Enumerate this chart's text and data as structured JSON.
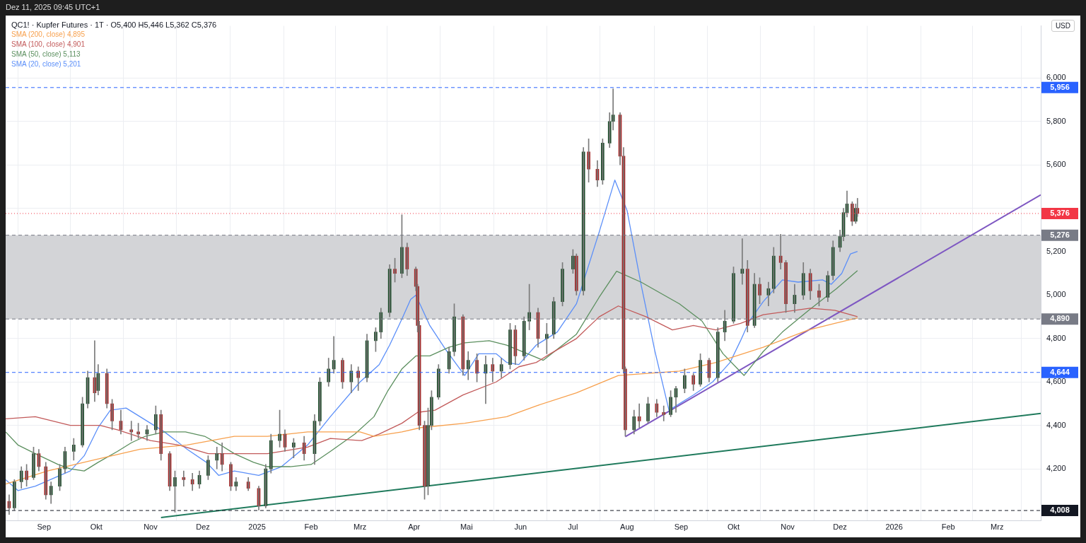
{
  "chart_data": {
    "type": "candlestick",
    "title": "QC1! · Kupfer Futures · 1T · O5,400 H5,446 L5,362 C5,376",
    "ylabel": "USD",
    "annotations": [
      "Dez 11, 2025 09:45 UTC+1"
    ],
    "x": [
      "2024-08-12",
      "2024-08-15",
      "2024-08-19",
      "2024-08-22",
      "2024-08-26",
      "2024-08-29",
      "2024-09-02",
      "2024-09-05",
      "2024-09-10",
      "2024-09-13",
      "2024-09-18",
      "2024-09-23",
      "2024-09-26",
      "2024-09-30",
      "2024-10-02",
      "2024-10-07",
      "2024-10-10",
      "2024-10-15",
      "2024-10-21",
      "2024-10-25",
      "2024-10-30",
      "2024-11-04",
      "2024-11-07",
      "2024-11-12",
      "2024-11-15",
      "2024-11-20",
      "2024-11-25",
      "2024-11-29",
      "2024-12-04",
      "2024-12-09",
      "2024-12-12",
      "2024-12-17",
      "2024-12-20",
      "2024-12-27",
      "2025-01-02",
      "2025-01-06",
      "2025-01-09",
      "2025-01-14",
      "2025-01-17",
      "2025-01-22",
      "2025-01-28",
      "2025-02-03",
      "2025-02-06",
      "2025-02-11",
      "2025-02-14",
      "2025-02-19",
      "2025-02-24",
      "2025-02-28",
      "2025-03-05",
      "2025-03-10",
      "2025-03-13",
      "2025-03-18",
      "2025-03-21",
      "2025-03-25",
      "2025-03-28",
      "2025-04-02",
      "2025-04-03",
      "2025-04-04",
      "2025-04-07",
      "2025-04-09",
      "2025-04-11",
      "2025-04-15",
      "2025-04-21",
      "2025-04-24",
      "2025-04-29",
      "2025-05-02",
      "2025-05-07",
      "2025-05-12",
      "2025-05-16",
      "2025-05-21",
      "2025-05-26",
      "2025-05-29",
      "2025-06-03",
      "2025-06-06",
      "2025-06-11",
      "2025-06-16",
      "2025-06-20",
      "2025-06-25",
      "2025-07-01",
      "2025-07-03",
      "2025-07-07",
      "2025-07-10",
      "2025-07-15",
      "2025-07-18",
      "2025-07-22",
      "2025-07-24",
      "2025-07-28",
      "2025-07-30",
      "2025-07-31",
      "2025-08-05",
      "2025-08-08",
      "2025-08-13",
      "2025-08-18",
      "2025-08-22",
      "2025-08-26",
      "2025-08-29",
      "2025-09-03",
      "2025-09-08",
      "2025-09-12",
      "2025-09-17",
      "2025-09-22",
      "2025-09-26",
      "2025-10-01",
      "2025-10-06",
      "2025-10-09",
      "2025-10-13",
      "2025-10-16",
      "2025-10-21",
      "2025-10-24",
      "2025-10-28",
      "2025-10-31",
      "2025-11-05",
      "2025-11-10",
      "2025-11-14",
      "2025-11-19",
      "2025-11-24",
      "2025-11-27",
      "2025-12-01",
      "2025-12-03",
      "2025-12-05",
      "2025-12-08",
      "2025-12-10",
      "2025-12-11"
    ],
    "ohlc": [
      [
        4050,
        4080,
        3990,
        4020
      ],
      [
        4020,
        4150,
        4010,
        4140
      ],
      [
        4140,
        4210,
        4110,
        4190
      ],
      [
        4190,
        4220,
        4120,
        4150
      ],
      [
        4160,
        4300,
        4150,
        4270
      ],
      [
        4270,
        4290,
        4190,
        4210
      ],
      [
        4210,
        4230,
        4060,
        4080
      ],
      [
        4080,
        4140,
        4040,
        4120
      ],
      [
        4120,
        4220,
        4100,
        4200
      ],
      [
        4200,
        4300,
        4180,
        4280
      ],
      [
        4280,
        4340,
        4240,
        4310
      ],
      [
        4310,
        4530,
        4300,
        4500
      ],
      [
        4500,
        4650,
        4480,
        4620
      ],
      [
        4620,
        4790,
        4510,
        4550
      ],
      [
        4560,
        4680,
        4540,
        4640
      ],
      [
        4640,
        4660,
        4480,
        4500
      ],
      [
        4500,
        4520,
        4380,
        4420
      ],
      [
        4420,
        4470,
        4360,
        4380
      ],
      [
        4380,
        4420,
        4330,
        4370
      ],
      [
        4370,
        4410,
        4340,
        4360
      ],
      [
        4360,
        4400,
        4330,
        4380
      ],
      [
        4380,
        4490,
        4360,
        4450
      ],
      [
        4450,
        4470,
        4240,
        4270
      ],
      [
        4270,
        4280,
        4100,
        4120
      ],
      [
        4120,
        4190,
        4000,
        4160
      ],
      [
        4160,
        4190,
        4120,
        4150
      ],
      [
        4150,
        4180,
        4100,
        4130
      ],
      [
        4130,
        4190,
        4110,
        4170
      ],
      [
        4170,
        4260,
        4150,
        4240
      ],
      [
        4240,
        4300,
        4200,
        4270
      ],
      [
        4270,
        4320,
        4190,
        4220
      ],
      [
        4220,
        4230,
        4100,
        4120
      ],
      [
        4120,
        4160,
        4100,
        4140
      ],
      [
        4140,
        4160,
        4100,
        4110
      ],
      [
        4110,
        4120,
        4010,
        4030
      ],
      [
        4030,
        4220,
        4020,
        4200
      ],
      [
        4200,
        4360,
        4180,
        4330
      ],
      [
        4330,
        4470,
        4300,
        4360
      ],
      [
        4360,
        4380,
        4280,
        4300
      ],
      [
        4300,
        4340,
        4250,
        4320
      ],
      [
        4320,
        4350,
        4240,
        4270
      ],
      [
        4270,
        4450,
        4220,
        4420
      ],
      [
        4420,
        4620,
        4400,
        4600
      ],
      [
        4600,
        4710,
        4580,
        4660
      ],
      [
        4660,
        4810,
        4640,
        4700
      ],
      [
        4700,
        4710,
        4570,
        4600
      ],
      [
        4600,
        4680,
        4550,
        4650
      ],
      [
        4650,
        4670,
        4560,
        4620
      ],
      [
        4620,
        4820,
        4600,
        4790
      ],
      [
        4790,
        4850,
        4740,
        4830
      ],
      [
        4830,
        4940,
        4800,
        4920
      ],
      [
        4920,
        5140,
        4900,
        5120
      ],
      [
        5120,
        5170,
        5060,
        5100
      ],
      [
        5100,
        5370,
        5080,
        5220
      ],
      [
        5220,
        5240,
        5090,
        5120
      ],
      [
        5120,
        5130,
        5020,
        5040
      ],
      [
        5040,
        5050,
        4830,
        4860
      ],
      [
        4860,
        4880,
        4380,
        4400
      ],
      [
        4400,
        4420,
        4060,
        4120
      ],
      [
        4120,
        4480,
        4080,
        4400
      ],
      [
        4400,
        4560,
        4380,
        4530
      ],
      [
        4530,
        4680,
        4520,
        4660
      ],
      [
        4660,
        4760,
        4640,
        4740
      ],
      [
        4740,
        4960,
        4720,
        4900
      ],
      [
        4900,
        4910,
        4630,
        4660
      ],
      [
        4660,
        4740,
        4610,
        4700
      ],
      [
        4700,
        4730,
        4600,
        4640
      ],
      [
        4640,
        4720,
        4500,
        4680
      ],
      [
        4680,
        4710,
        4600,
        4650
      ],
      [
        4650,
        4710,
        4620,
        4680
      ],
      [
        4680,
        4870,
        4660,
        4840
      ],
      [
        4840,
        4860,
        4680,
        4720
      ],
      [
        4720,
        4900,
        4700,
        4880
      ],
      [
        4880,
        5050,
        4840,
        4920
      ],
      [
        4920,
        4940,
        4760,
        4800
      ],
      [
        4800,
        4870,
        4730,
        4820
      ],
      [
        4820,
        4990,
        4800,
        4970
      ],
      [
        4970,
        5150,
        4950,
        5120
      ],
      [
        5120,
        5210,
        5100,
        5180
      ],
      [
        5180,
        5190,
        5000,
        5020
      ],
      [
        5020,
        5680,
        5000,
        5660
      ],
      [
        5660,
        5720,
        5520,
        5580
      ],
      [
        5580,
        5620,
        5500,
        5530
      ],
      [
        5530,
        5720,
        5510,
        5700
      ],
      [
        5700,
        5840,
        5680,
        5800
      ],
      [
        5800,
        5950,
        5760,
        5830
      ],
      [
        5830,
        5840,
        5600,
        5640
      ],
      [
        5640,
        5680,
        4640,
        4660
      ],
      [
        4660,
        4670,
        4350,
        4380
      ],
      [
        4380,
        4470,
        4360,
        4440
      ],
      [
        4440,
        4500,
        4390,
        4420
      ],
      [
        4420,
        4530,
        4410,
        4500
      ],
      [
        4500,
        4520,
        4440,
        4460
      ],
      [
        4460,
        4490,
        4420,
        4450
      ],
      [
        4450,
        4560,
        4440,
        4530
      ],
      [
        4530,
        4580,
        4460,
        4570
      ],
      [
        4570,
        4660,
        4550,
        4630
      ],
      [
        4630,
        4640,
        4560,
        4590
      ],
      [
        4590,
        4730,
        4580,
        4700
      ],
      [
        4700,
        4710,
        4600,
        4620
      ],
      [
        4620,
        4850,
        4600,
        4830
      ],
      [
        4830,
        4930,
        4790,
        4880
      ],
      [
        4880,
        5130,
        4870,
        5100
      ],
      [
        5100,
        5260,
        5050,
        5120
      ],
      [
        5120,
        5160,
        4830,
        4860
      ],
      [
        4860,
        5100,
        4850,
        5050
      ],
      [
        5050,
        5080,
        4960,
        5000
      ],
      [
        5000,
        5060,
        4950,
        5030
      ],
      [
        5030,
        5220,
        5010,
        5180
      ],
      [
        5180,
        5280,
        5120,
        5150
      ],
      [
        5150,
        5160,
        4920,
        4960
      ],
      [
        4960,
        5050,
        4920,
        5000
      ],
      [
        5000,
        5150,
        4980,
        5100
      ],
      [
        5100,
        5120,
        4980,
        5020
      ],
      [
        5020,
        5050,
        4950,
        4990
      ],
      [
        4990,
        5110,
        4970,
        5090
      ],
      [
        5090,
        5250,
        5070,
        5220
      ],
      [
        5220,
        5300,
        5200,
        5270
      ],
      [
        5270,
        5400,
        5250,
        5380
      ],
      [
        5380,
        5480,
        5360,
        5420
      ],
      [
        5420,
        5430,
        5320,
        5340
      ],
      [
        5340,
        5420,
        5330,
        5400
      ],
      [
        5400,
        5446,
        5362,
        5376
      ]
    ],
    "colors": [
      "#a52a2a",
      "#1f4d2c",
      "#1f4d2c",
      "#a52a2a",
      "#1f4d2c",
      "#a52a2a",
      "#a52a2a",
      "#1f4d2c",
      "#1f4d2c",
      "#1f4d2c",
      "#1f4d2c",
      "#1f4d2c",
      "#1f4d2c",
      "#a52a2a",
      "#1f4d2c",
      "#a52a2a",
      "#a52a2a",
      "#a52a2a",
      "#a52a2a",
      "#a52a2a",
      "#1f4d2c",
      "#1f4d2c",
      "#a52a2a",
      "#a52a2a",
      "#1f4d2c",
      "#a52a2a",
      "#a52a2a",
      "#1f4d2c",
      "#1f4d2c",
      "#1f4d2c",
      "#a52a2a",
      "#a52a2a",
      "#1f4d2c",
      "#a52a2a",
      "#a52a2a",
      "#1f4d2c",
      "#1f4d2c",
      "#1f4d2c",
      "#a52a2a",
      "#1f4d2c",
      "#a52a2a",
      "#1f4d2c",
      "#1f4d2c",
      "#1f4d2c",
      "#1f4d2c",
      "#a52a2a",
      "#1f4d2c",
      "#a52a2a",
      "#1f4d2c",
      "#1f4d2c",
      "#1f4d2c",
      "#1f4d2c",
      "#a52a2a",
      "#1f4d2c",
      "#a52a2a",
      "#a52a2a",
      "#a52a2a",
      "#a52a2a",
      "#a52a2a",
      "#1f4d2c",
      "#1f4d2c",
      "#1f4d2c",
      "#1f4d2c",
      "#1f4d2c",
      "#a52a2a",
      "#1f4d2c",
      "#a52a2a",
      "#1f4d2c",
      "#a52a2a",
      "#1f4d2c",
      "#1f4d2c",
      "#a52a2a",
      "#1f4d2c",
      "#1f4d2c",
      "#a52a2a",
      "#1f4d2c",
      "#1f4d2c",
      "#1f4d2c",
      "#1f4d2c",
      "#a52a2a",
      "#1f4d2c",
      "#a52a2a",
      "#a52a2a",
      "#1f4d2c",
      "#1f4d2c",
      "#1f4d2c",
      "#a52a2a",
      "#a52a2a",
      "#a52a2a",
      "#1f4d2c",
      "#a52a2a",
      "#1f4d2c",
      "#a52a2a",
      "#a52a2a",
      "#1f4d2c",
      "#1f4d2c",
      "#1f4d2c",
      "#a52a2a",
      "#1f4d2c",
      "#a52a2a",
      "#1f4d2c",
      "#1f4d2c",
      "#1f4d2c",
      "#1f4d2c",
      "#a52a2a",
      "#1f4d2c",
      "#a52a2a",
      "#1f4d2c",
      "#1f4d2c",
      "#a52a2a",
      "#a52a2a",
      "#1f4d2c",
      "#1f4d2c",
      "#a52a2a",
      "#a52a2a",
      "#1f4d2c",
      "#1f4d2c",
      "#1f4d2c",
      "#1f4d2c",
      "#1f4d2c",
      "#a52a2a",
      "#1f4d2c",
      "#a52a2a"
    ],
    "series": [
      {
        "type": "line",
        "name": "SMA (200, close)  4,895",
        "color": "#f7a04d",
        "x": [
          "2024-08-10",
          "2024-09-03",
          "2024-09-29",
          "2024-10-26",
          "2024-11-22",
          "2024-12-19",
          "2025-01-07",
          "2025-01-30",
          "2025-03-01",
          "2025-03-09",
          "2025-03-25",
          "2025-04-05",
          "2025-04-30",
          "2025-05-24",
          "2025-06-10",
          "2025-07-03",
          "2025-07-27",
          "2025-08-31",
          "2025-09-21",
          "2025-10-18",
          "2025-11-13",
          "2025-11-28",
          "2025-12-11"
        ],
        "values": [
          4130,
          4190,
          4240,
          4290,
          4310,
          4350,
          4350,
          4370,
          4370,
          4350,
          4370,
          4390,
          4410,
          4440,
          4490,
          4550,
          4630,
          4650,
          4690,
          4760,
          4840,
          4870,
          4895
        ]
      },
      {
        "type": "line",
        "name": "SMA (100, close)  4,901",
        "color": "#c25a5a",
        "x": [
          "2024-08-10",
          "2024-08-27",
          "2024-09-16",
          "2024-10-03",
          "2024-10-13",
          "2024-11-01",
          "2024-11-17",
          "2024-12-04",
          "2025-01-07",
          "2025-01-30",
          "2025-02-12",
          "2025-03-02",
          "2025-03-12",
          "2025-03-25",
          "2025-04-03",
          "2025-04-13",
          "2025-04-29",
          "2025-05-18",
          "2025-05-31",
          "2025-06-10",
          "2025-06-18",
          "2025-07-03",
          "2025-07-16",
          "2025-07-27",
          "2025-08-12",
          "2025-08-27",
          "2025-09-08",
          "2025-09-21",
          "2025-10-05",
          "2025-10-18",
          "2025-11-14",
          "2025-11-28",
          "2025-12-11"
        ],
        "values": [
          4430,
          4440,
          4400,
          4400,
          4380,
          4330,
          4310,
          4270,
          4270,
          4300,
          4340,
          4330,
          4360,
          4410,
          4460,
          4470,
          4540,
          4600,
          4670,
          4690,
          4730,
          4800,
          4900,
          4950,
          4900,
          4840,
          4860,
          4840,
          4870,
          4910,
          4940,
          4930,
          4901
        ]
      },
      {
        "type": "line",
        "name": "SMA (50, close)  5,113",
        "color": "#5b8f5e",
        "x": [
          "2024-08-10",
          "2024-08-17",
          "2024-08-27",
          "2024-09-09",
          "2024-09-16",
          "2024-09-24",
          "2024-10-02",
          "2024-10-13",
          "2024-10-21",
          "2024-10-29",
          "2024-11-09",
          "2024-11-21",
          "2024-12-02",
          "2024-12-11",
          "2024-12-19",
          "2024-12-30",
          "2025-01-07",
          "2025-01-20",
          "2025-02-01",
          "2025-02-12",
          "2025-02-26",
          "2025-03-09",
          "2025-03-17",
          "2025-03-25",
          "2025-04-02",
          "2025-04-10",
          "2025-04-21",
          "2025-04-30",
          "2025-05-14",
          "2025-05-24",
          "2025-06-05",
          "2025-06-14",
          "2025-07-03",
          "2025-07-16",
          "2025-07-26",
          "2025-08-09",
          "2025-08-31",
          "2025-09-13",
          "2025-09-25",
          "2025-10-07",
          "2025-10-18",
          "2025-10-29",
          "2025-11-13",
          "2025-11-21",
          "2025-11-29",
          "2025-12-11"
        ],
        "values": [
          4370,
          4310,
          4270,
          4220,
          4200,
          4190,
          4230,
          4280,
          4320,
          4350,
          4370,
          4370,
          4350,
          4310,
          4270,
          4230,
          4210,
          4210,
          4220,
          4280,
          4360,
          4440,
          4560,
          4660,
          4720,
          4720,
          4760,
          4780,
          4790,
          4770,
          4730,
          4700,
          4820,
          4990,
          5110,
          5060,
          4960,
          4880,
          4730,
          4630,
          4740,
          4830,
          4930,
          4980,
          5030,
          5113
        ]
      },
      {
        "type": "line",
        "name": "SMA (20, close)  5,201",
        "color": "#5b8ff9",
        "x": [
          "2024-08-10",
          "2024-08-17",
          "2024-08-27",
          "2024-09-16",
          "2024-09-24",
          "2024-10-02",
          "2024-10-09",
          "2024-10-18",
          "2024-10-26",
          "2024-11-09",
          "2024-11-22",
          "2024-12-03",
          "2024-12-10",
          "2024-12-19",
          "2025-01-02",
          "2025-01-15",
          "2025-01-30",
          "2025-02-12",
          "2025-03-01",
          "2025-03-12",
          "2025-03-18",
          "2025-03-25",
          "2025-03-30",
          "2025-04-02",
          "2025-04-10",
          "2025-04-19",
          "2025-04-30",
          "2025-05-08",
          "2025-05-18",
          "2025-05-24",
          "2025-05-31",
          "2025-06-10",
          "2025-06-22",
          "2025-07-03",
          "2025-07-16",
          "2025-07-25",
          "2025-08-01",
          "2025-08-09",
          "2025-08-17",
          "2025-08-25",
          "2025-09-08",
          "2025-09-19",
          "2025-09-29",
          "2025-10-05",
          "2025-10-10",
          "2025-10-18",
          "2025-10-29",
          "2025-11-07",
          "2025-11-21",
          "2025-11-26",
          "2025-12-02",
          "2025-12-07",
          "2025-12-11"
        ],
        "values": [
          4150,
          4100,
          4120,
          4190,
          4260,
          4390,
          4470,
          4480,
          4440,
          4370,
          4290,
          4230,
          4170,
          4190,
          4170,
          4210,
          4310,
          4440,
          4600,
          4680,
          4770,
          4890,
          4980,
          5000,
          4860,
          4750,
          4630,
          4730,
          4730,
          4690,
          4680,
          4770,
          4830,
          4960,
          5290,
          5530,
          5390,
          5050,
          4740,
          4470,
          4540,
          4600,
          4690,
          4790,
          4880,
          4970,
          5070,
          5060,
          5070,
          5050,
          5100,
          5190,
          5201
        ]
      },
      {
        "type": "line",
        "color": "#7e57c2",
        "x": [
          "2025-07-31",
          "2026-03-26"
        ],
        "values": [
          4348,
          5462
        ]
      },
      {
        "type": "line",
        "color": "#1f7a5c",
        "x": [
          "2024-11-07",
          "2026-03-26"
        ],
        "values": [
          3976,
          4455
        ]
      }
    ],
    "xlim": [
      "2024-08-10",
      "2026-03-26"
    ],
    "xticks": [
      {
        "value": "2024-09-01",
        "label": "Sep"
      },
      {
        "value": "2024-10-01",
        "label": "Okt"
      },
      {
        "value": "2024-11-01",
        "label": "Nov"
      },
      {
        "value": "2024-12-01",
        "label": "Dez"
      },
      {
        "value": "2025-01-01",
        "label": "2025"
      },
      {
        "value": "2025-02-01",
        "label": "Feb"
      },
      {
        "value": "2025-03-01",
        "label": "Mrz"
      },
      {
        "value": "2025-04-01",
        "label": "Apr"
      },
      {
        "value": "2025-05-01",
        "label": "Mai"
      },
      {
        "value": "2025-06-01",
        "label": "Jun"
      },
      {
        "value": "2025-07-01",
        "label": "Jul"
      },
      {
        "value": "2025-08-01",
        "label": "Aug"
      },
      {
        "value": "2025-09-01",
        "label": "Sep"
      },
      {
        "value": "2025-10-01",
        "label": "Okt"
      },
      {
        "value": "2025-11-01",
        "label": "Nov"
      },
      {
        "value": "2025-12-01",
        "label": "Dez"
      },
      {
        "value": "2026-01-01",
        "label": "2026"
      },
      {
        "value": "2026-02-01",
        "label": "Feb"
      },
      {
        "value": "2026-03-01",
        "label": "Mrz"
      }
    ],
    "ylim": [
      3960,
      6240
    ],
    "yticks": [
      {
        "value": 4200,
        "label": "4,200"
      },
      {
        "value": 4400,
        "label": "4,400"
      },
      {
        "value": 4600,
        "label": "4,600"
      },
      {
        "value": 4800,
        "label": "4,800"
      },
      {
        "value": 5000,
        "label": "5,000"
      },
      {
        "value": 5200,
        "label": "5,200"
      },
      {
        "value": 5400,
        "label": null
      },
      {
        "value": 5600,
        "label": "5,600"
      },
      {
        "value": 5800,
        "label": "5,800"
      },
      {
        "value": 6000,
        "label": "6,000"
      }
    ],
    "ref_lines": [
      {
        "axis": "y",
        "value": 5956,
        "label": "5,956",
        "color": "#2962ff",
        "line_style": "dashed"
      },
      {
        "axis": "y",
        "value": 5376,
        "label": "5,376",
        "color": "#f23645",
        "line_style": "dotted"
      },
      {
        "axis": "y",
        "value": 5276,
        "label": "5,276",
        "color": "#787b86",
        "line_style": "dashed"
      },
      {
        "axis": "y",
        "value": 4890,
        "label": "4,890",
        "color": "#787b86",
        "line_style": "dashed"
      },
      {
        "axis": "y",
        "value": 4644,
        "label": "4,644",
        "color": "#2962ff",
        "line_style": "dashed"
      },
      {
        "axis": "y",
        "value": 4008,
        "label": "4,008",
        "color": "#131722",
        "line_style": "dashed"
      }
    ],
    "bands": [
      {
        "axis": "y",
        "from": 4890,
        "to": 5276,
        "color": "#d3d4d7"
      }
    ],
    "grid": true,
    "legend": "top left",
    "marker": "none",
    "line_style": "solid"
  }
}
